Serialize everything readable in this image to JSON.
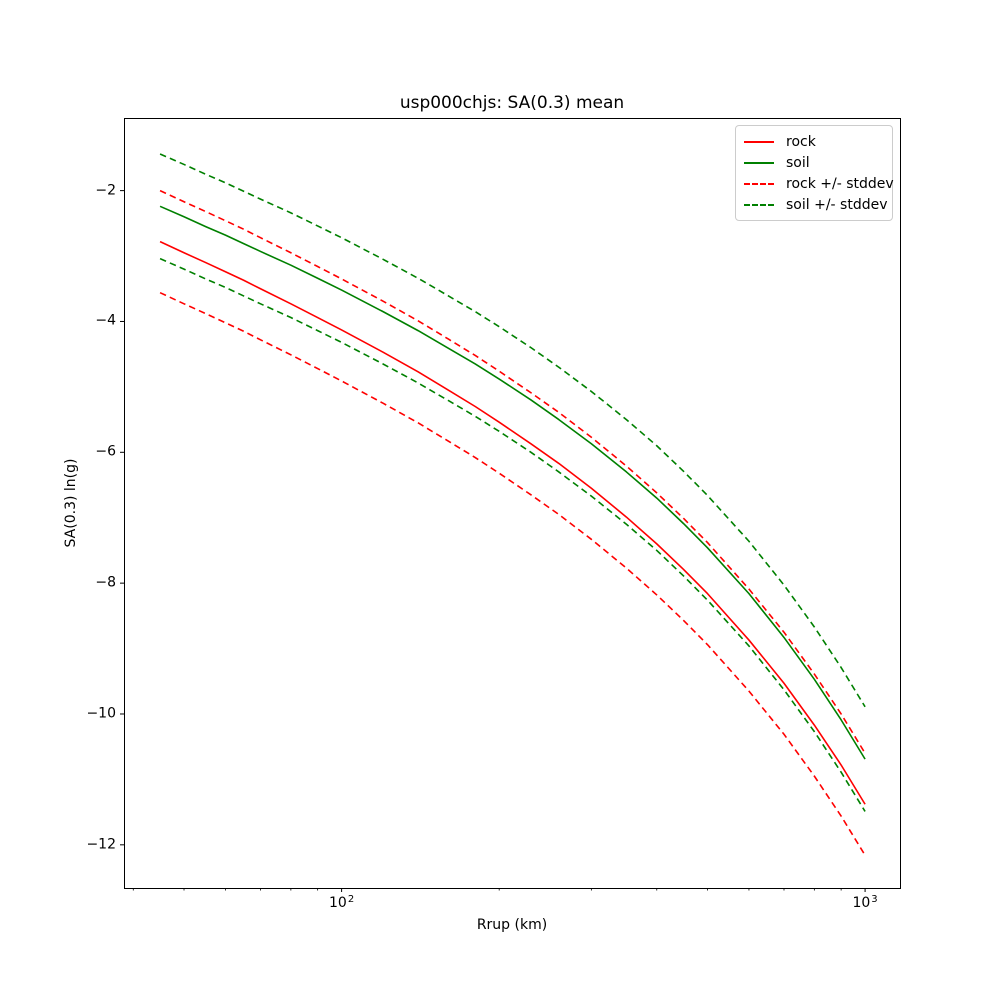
{
  "figure": {
    "title": "usp000chjs: SA(0.3) mean",
    "xlabel": "Rrup (km)",
    "ylabel": "SA(0.3) ln(g)"
  },
  "axes": {
    "x_scale": "log",
    "xlim": [
      38.4,
      1166
    ],
    "ylim": [
      -12.66,
      -0.89
    ],
    "x_major_ticks": [
      {
        "value": 100,
        "base": "10",
        "exp": "2"
      },
      {
        "value": 1000,
        "base": "10",
        "exp": "3"
      }
    ],
    "x_minor_ticks": [
      40,
      50,
      60,
      70,
      80,
      90,
      200,
      300,
      400,
      500,
      600,
      700,
      800,
      900
    ],
    "y_ticks": [
      {
        "value": -2,
        "label": "−2"
      },
      {
        "value": -4,
        "label": "−4"
      },
      {
        "value": -6,
        "label": "−6"
      },
      {
        "value": -8,
        "label": "−8"
      },
      {
        "value": -10,
        "label": "−10"
      },
      {
        "value": -12,
        "label": "−12"
      }
    ],
    "grid": false
  },
  "legend": {
    "position": "upper right",
    "items": [
      {
        "label": "rock",
        "color": "#ff0000",
        "dash": false
      },
      {
        "label": "soil",
        "color": "#008000",
        "dash": false
      },
      {
        "label": "rock +/- stddev",
        "color": "#ff0000",
        "dash": true
      },
      {
        "label": "soil +/- stddev",
        "color": "#008000",
        "dash": true
      }
    ]
  },
  "chart_data": {
    "type": "line",
    "title": "usp000chjs: SA(0.3) mean",
    "xlabel": "Rrup (km)",
    "ylabel": "SA(0.3) ln(g)",
    "x_scale": "log",
    "xlim": [
      38.4,
      1166
    ],
    "ylim": [
      -12.66,
      -0.89
    ],
    "legend_position": "upper right",
    "stddev": {
      "rock": 0.78,
      "soil": 0.8
    },
    "x": [
      45,
      50,
      55,
      60,
      65,
      70,
      80,
      90,
      100,
      120,
      140,
      160,
      180,
      200,
      230,
      260,
      300,
      350,
      400,
      450,
      500,
      600,
      700,
      800,
      900,
      1000
    ],
    "series": [
      {
        "name": "rock",
        "color": "#ff0000",
        "style": "solid",
        "values": [
          -2.78,
          -2.95,
          -3.1,
          -3.24,
          -3.37,
          -3.5,
          -3.73,
          -3.94,
          -4.13,
          -4.47,
          -4.77,
          -5.05,
          -5.3,
          -5.54,
          -5.87,
          -6.17,
          -6.55,
          -6.99,
          -7.4,
          -7.79,
          -8.16,
          -8.87,
          -9.53,
          -10.17,
          -10.78,
          -11.38
        ]
      },
      {
        "name": "soil",
        "color": "#008000",
        "style": "solid",
        "values": [
          -2.24,
          -2.4,
          -2.55,
          -2.68,
          -2.81,
          -2.93,
          -3.14,
          -3.34,
          -3.52,
          -3.85,
          -4.14,
          -4.41,
          -4.65,
          -4.88,
          -5.2,
          -5.5,
          -5.87,
          -6.3,
          -6.7,
          -7.09,
          -7.46,
          -8.16,
          -8.83,
          -9.47,
          -10.09,
          -10.69
        ]
      },
      {
        "name": "rock + stddev",
        "color": "#ff0000",
        "style": "dashed",
        "values": [
          -2.0,
          -2.17,
          -2.32,
          -2.46,
          -2.59,
          -2.72,
          -2.95,
          -3.16,
          -3.35,
          -3.69,
          -3.99,
          -4.27,
          -4.52,
          -4.76,
          -5.09,
          -5.39,
          -5.77,
          -6.21,
          -6.62,
          -7.01,
          -7.38,
          -8.09,
          -8.75,
          -9.39,
          -10.0,
          -10.6
        ]
      },
      {
        "name": "rock - stddev",
        "color": "#ff0000",
        "style": "dashed",
        "values": [
          -3.56,
          -3.73,
          -3.88,
          -4.02,
          -4.15,
          -4.28,
          -4.51,
          -4.72,
          -4.91,
          -5.25,
          -5.55,
          -5.83,
          -6.08,
          -6.32,
          -6.65,
          -6.95,
          -7.33,
          -7.77,
          -8.18,
          -8.57,
          -8.94,
          -9.65,
          -10.31,
          -10.95,
          -11.56,
          -12.16
        ]
      },
      {
        "name": "soil + stddev",
        "color": "#008000",
        "style": "dashed",
        "values": [
          -1.44,
          -1.6,
          -1.75,
          -1.88,
          -2.01,
          -2.13,
          -2.34,
          -2.54,
          -2.72,
          -3.05,
          -3.34,
          -3.61,
          -3.85,
          -4.08,
          -4.4,
          -4.7,
          -5.07,
          -5.5,
          -5.9,
          -6.29,
          -6.66,
          -7.36,
          -8.03,
          -8.67,
          -9.29,
          -9.89
        ]
      },
      {
        "name": "soil - stddev",
        "color": "#008000",
        "style": "dashed",
        "values": [
          -3.04,
          -3.2,
          -3.35,
          -3.48,
          -3.61,
          -3.73,
          -3.94,
          -4.14,
          -4.32,
          -4.65,
          -4.94,
          -5.21,
          -5.45,
          -5.68,
          -6.0,
          -6.3,
          -6.67,
          -7.1,
          -7.5,
          -7.89,
          -8.26,
          -8.96,
          -9.63,
          -10.27,
          -10.89,
          -11.49
        ]
      }
    ]
  }
}
